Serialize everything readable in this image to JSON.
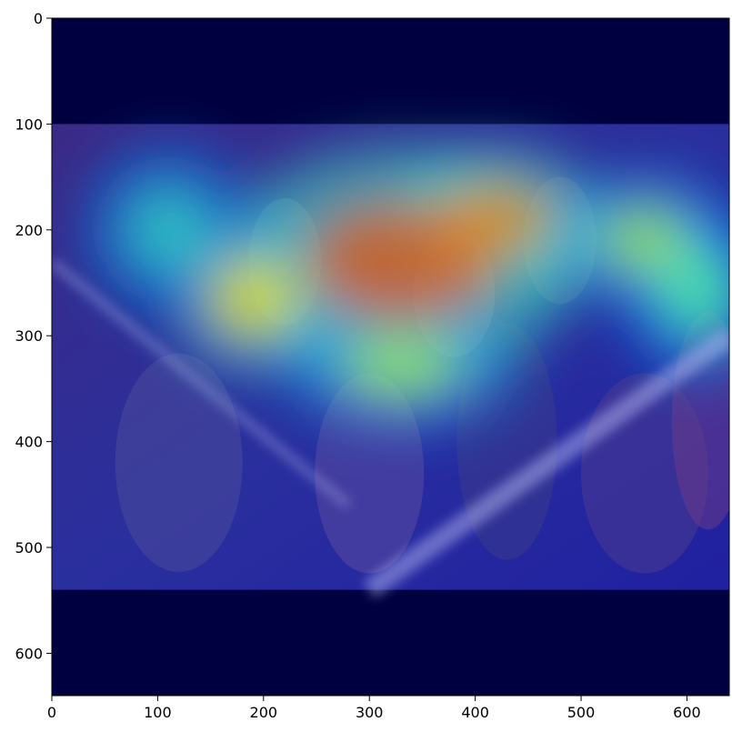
{
  "chart_data": {
    "type": "heatmap",
    "title": "",
    "xlabel": "",
    "ylabel": "",
    "xlim": [
      0,
      640
    ],
    "ylim": [
      640,
      0
    ],
    "x_ticks": [
      0,
      100,
      200,
      300,
      400,
      500,
      600
    ],
    "y_ticks": [
      0,
      100,
      200,
      300,
      400,
      500,
      600
    ],
    "x_tick_labels": [
      "0",
      "100",
      "200",
      "300",
      "400",
      "500",
      "600"
    ],
    "y_tick_labels": [
      "0",
      "100",
      "200",
      "300",
      "400",
      "500",
      "600"
    ],
    "colormap": "jet",
    "photo_extent_y": [
      100,
      540
    ],
    "attention_blobs": [
      {
        "cx": 330,
        "cy": 230,
        "rx": 150,
        "ry": 95,
        "level": 0.95
      },
      {
        "cx": 420,
        "cy": 190,
        "rx": 90,
        "ry": 60,
        "level": 0.9
      },
      {
        "cx": 190,
        "cy": 265,
        "rx": 70,
        "ry": 65,
        "level": 0.8
      },
      {
        "cx": 560,
        "cy": 210,
        "rx": 70,
        "ry": 55,
        "level": 0.7
      },
      {
        "cx": 610,
        "cy": 260,
        "rx": 60,
        "ry": 70,
        "level": 0.6
      },
      {
        "cx": 330,
        "cy": 330,
        "rx": 95,
        "ry": 50,
        "level": 0.7
      },
      {
        "cx": 110,
        "cy": 200,
        "rx": 70,
        "ry": 70,
        "level": 0.5
      }
    ],
    "grid": false
  },
  "colors": {
    "background_dark": "#000040",
    "photo_tint": "#1a1a8f",
    "axis": "#000000"
  }
}
